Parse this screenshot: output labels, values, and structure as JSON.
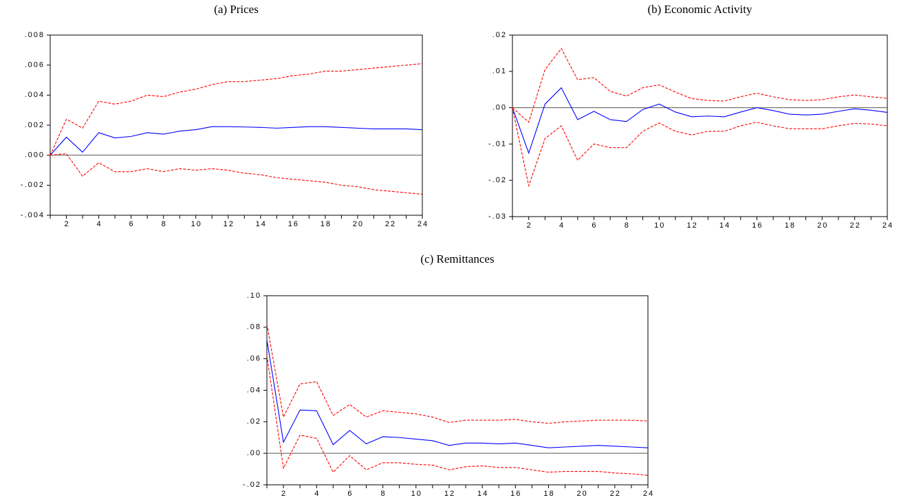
{
  "chart_data": [
    {
      "type": "line",
      "title": "(a) Prices",
      "x": [
        1,
        2,
        3,
        4,
        5,
        6,
        7,
        8,
        9,
        10,
        11,
        12,
        13,
        14,
        15,
        16,
        17,
        18,
        19,
        20,
        21,
        22,
        23,
        24
      ],
      "xlim": [
        1,
        24
      ],
      "xticks": [
        2,
        4,
        6,
        8,
        10,
        12,
        14,
        16,
        18,
        20,
        22,
        24
      ],
      "xminor_ticks": [
        1,
        3,
        5,
        7,
        9,
        11,
        13,
        15,
        17,
        19,
        21,
        23
      ],
      "ylim": [
        -0.004,
        0.008
      ],
      "yticks": [
        {
          "value": -0.004,
          "label": "-.004"
        },
        {
          "value": -0.002,
          "label": "-.002"
        },
        {
          "value": 0,
          "label": ".000"
        },
        {
          "value": 0.002,
          "label": ".002"
        },
        {
          "value": 0.004,
          "label": ".004"
        },
        {
          "value": 0.006,
          "label": ".006"
        },
        {
          "value": 0.008,
          "label": ".008"
        }
      ],
      "zero_line": true,
      "series": [
        {
          "color": "#0000ff",
          "dashed": false,
          "values": [
            0,
            0.0012,
            0.0002,
            0.0015,
            0.00115,
            0.00125,
            0.0015,
            0.0014,
            0.0016,
            0.0017,
            0.0019,
            0.0019,
            0.00188,
            0.00185,
            0.0018,
            0.00185,
            0.0019,
            0.0019,
            0.00185,
            0.0018,
            0.00175,
            0.00175,
            0.00175,
            0.0017
          ]
        },
        {
          "color": "#ff0000",
          "dashed": true,
          "values": [
            0,
            0.0024,
            0.0018,
            0.0036,
            0.0034,
            0.0036,
            0.004,
            0.0039,
            0.0042,
            0.0044,
            0.0047,
            0.0049,
            0.0049,
            0.005,
            0.0051,
            0.0053,
            0.0054,
            0.0056,
            0.0056,
            0.0057,
            0.0058,
            0.0059,
            0.006,
            0.0061
          ]
        },
        {
          "color": "#ff0000",
          "dashed": true,
          "values": [
            0,
            0.0001,
            -0.0014,
            -0.0005,
            -0.0011,
            -0.0011,
            -0.0009,
            -0.0011,
            -0.0009,
            -0.001,
            -0.0009,
            -0.001,
            -0.0012,
            -0.0013,
            -0.0015,
            -0.0016,
            -0.0017,
            -0.0018,
            -0.002,
            -0.0021,
            -0.0023,
            -0.0024,
            -0.0025,
            -0.0026
          ]
        }
      ]
    },
    {
      "type": "line",
      "title": "(b) Economic Activity",
      "x": [
        1,
        2,
        3,
        4,
        5,
        6,
        7,
        8,
        9,
        10,
        11,
        12,
        13,
        14,
        15,
        16,
        17,
        18,
        19,
        20,
        21,
        22,
        23,
        24
      ],
      "xlim": [
        1,
        24
      ],
      "xticks": [
        2,
        4,
        6,
        8,
        10,
        12,
        14,
        16,
        18,
        20,
        22,
        24
      ],
      "xminor_ticks": [
        1,
        3,
        5,
        7,
        9,
        11,
        13,
        15,
        17,
        19,
        21,
        23
      ],
      "ylim": [
        -0.03,
        0.02
      ],
      "yticks": [
        {
          "value": -0.03,
          "label": "-.03"
        },
        {
          "value": -0.02,
          "label": "-.02"
        },
        {
          "value": -0.01,
          "label": "-.01"
        },
        {
          "value": 0,
          "label": ".00"
        },
        {
          "value": 0.01,
          "label": ".01"
        },
        {
          "value": 0.02,
          "label": ".02"
        }
      ],
      "zero_line": true,
      "series": [
        {
          "color": "#0000ff",
          "dashed": false,
          "values": [
            0,
            -0.0125,
            0.001,
            0.0055,
            -0.0033,
            -0.001,
            -0.0033,
            -0.0038,
            -0.0005,
            0.001,
            -0.0012,
            -0.0025,
            -0.0023,
            -0.0025,
            -0.0012,
            0,
            -0.0008,
            -0.0018,
            -0.002,
            -0.0018,
            -0.001,
            -0.0003,
            -0.0007,
            -0.0013
          ]
        },
        {
          "color": "#ff0000",
          "dashed": true,
          "values": [
            0,
            -0.004,
            0.0105,
            0.0163,
            0.0077,
            0.0083,
            0.0045,
            0.0032,
            0.0055,
            0.0063,
            0.0043,
            0.0025,
            0.002,
            0.0018,
            0.003,
            0.004,
            0.003,
            0.0022,
            0.002,
            0.0022,
            0.003,
            0.0035,
            0.003,
            0.0026
          ]
        },
        {
          "color": "#ff0000",
          "dashed": true,
          "values": [
            0,
            -0.0215,
            -0.0085,
            -0.005,
            -0.0145,
            -0.01,
            -0.011,
            -0.011,
            -0.0065,
            -0.0042,
            -0.0065,
            -0.0075,
            -0.0065,
            -0.0065,
            -0.005,
            -0.004,
            -0.005,
            -0.0058,
            -0.0058,
            -0.0058,
            -0.005,
            -0.0043,
            -0.0045,
            -0.005
          ]
        }
      ]
    },
    {
      "type": "line",
      "title": "(c) Remittances",
      "x": [
        1,
        2,
        3,
        4,
        5,
        6,
        7,
        8,
        9,
        10,
        11,
        12,
        13,
        14,
        15,
        16,
        17,
        18,
        19,
        20,
        21,
        22,
        23,
        24
      ],
      "xlim": [
        1,
        24
      ],
      "xticks": [
        2,
        4,
        6,
        8,
        10,
        12,
        14,
        16,
        18,
        20,
        22,
        24
      ],
      "xminor_ticks": [
        1,
        3,
        5,
        7,
        9,
        11,
        13,
        15,
        17,
        19,
        21,
        23
      ],
      "ylim": [
        -0.02,
        0.1
      ],
      "yticks": [
        {
          "value": -0.02,
          "label": "-.02"
        },
        {
          "value": 0,
          "label": ".00"
        },
        {
          "value": 0.02,
          "label": ".02"
        },
        {
          "value": 0.04,
          "label": ".04"
        },
        {
          "value": 0.06,
          "label": ".06"
        },
        {
          "value": 0.08,
          "label": ".08"
        },
        {
          "value": 0.1,
          "label": ".10"
        }
      ],
      "zero_line": true,
      "series": [
        {
          "color": "#0000ff",
          "dashed": false,
          "values": [
            0.072,
            0.007,
            0.0275,
            0.027,
            0.0055,
            0.0145,
            0.006,
            0.0105,
            0.01,
            0.009,
            0.008,
            0.005,
            0.0065,
            0.0065,
            0.006,
            0.0065,
            0.005,
            0.0035,
            0.004,
            0.0045,
            0.005,
            0.0045,
            0.004,
            0.0035
          ]
        },
        {
          "color": "#ff0000",
          "dashed": true,
          "values": [
            0.082,
            0.023,
            0.044,
            0.0455,
            0.024,
            0.031,
            0.023,
            0.027,
            0.026,
            0.025,
            0.023,
            0.0195,
            0.021,
            0.021,
            0.021,
            0.0215,
            0.02,
            0.019,
            0.02,
            0.0205,
            0.021,
            0.021,
            0.021,
            0.0205
          ]
        },
        {
          "color": "#ff0000",
          "dashed": true,
          "values": [
            0.062,
            -0.0095,
            0.0115,
            0.0095,
            -0.012,
            -0.0015,
            -0.0105,
            -0.006,
            -0.006,
            -0.007,
            -0.0075,
            -0.0105,
            -0.0085,
            -0.008,
            -0.009,
            -0.009,
            -0.0105,
            -0.012,
            -0.0115,
            -0.0115,
            -0.0115,
            -0.0125,
            -0.013,
            -0.014
          ]
        }
      ]
    }
  ]
}
